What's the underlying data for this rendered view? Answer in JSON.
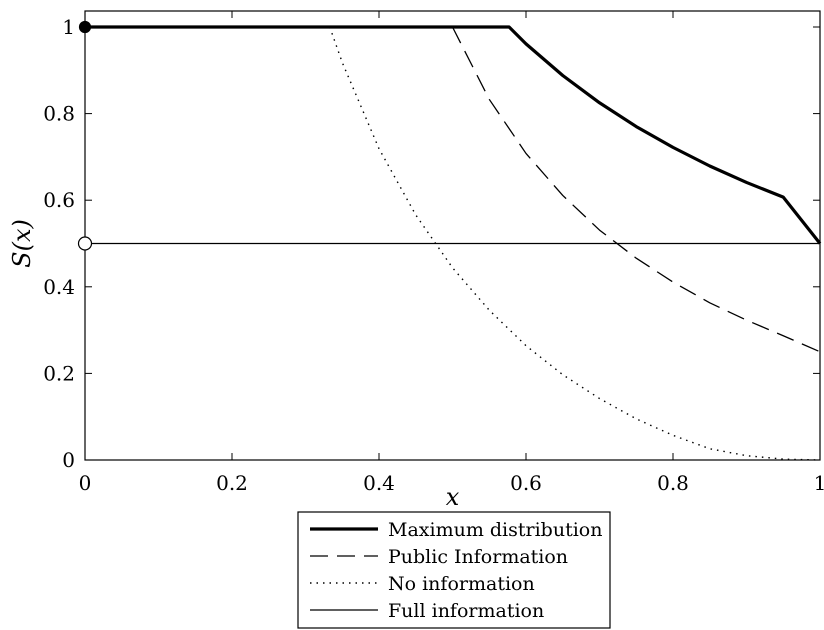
{
  "chart_data": {
    "type": "line",
    "xlabel": "x",
    "ylabel": "S(x)",
    "xlim": [
      0,
      1
    ],
    "ylim": [
      0,
      1
    ],
    "xticks": [
      "0",
      "0.2",
      "0.4",
      "0.6",
      "0.8",
      "1"
    ],
    "yticks": [
      "0",
      "0.2",
      "0.4",
      "0.6",
      "0.8",
      "1"
    ],
    "grid": false,
    "legend_position": "bottom-center",
    "series": [
      {
        "name": "Maximum distribution",
        "style": "solid-thick",
        "x": [
          0,
          0.577,
          0.6,
          0.65,
          0.7,
          0.75,
          0.8,
          0.85,
          0.9,
          0.95,
          1.0
        ],
        "y": [
          1.0,
          1.0,
          0.961,
          0.888,
          0.825,
          0.77,
          0.722,
          0.679,
          0.641,
          0.607,
          0.5
        ]
      },
      {
        "name": "Public Information",
        "style": "dashed",
        "x": [
          0.5,
          0.55,
          0.6,
          0.65,
          0.7,
          0.75,
          0.8,
          0.85,
          0.9,
          0.95,
          1.0
        ],
        "y": [
          1.0,
          0.833,
          0.708,
          0.611,
          0.531,
          0.466,
          0.411,
          0.363,
          0.323,
          0.287,
          0.25
        ]
      },
      {
        "name": "No information",
        "style": "dotted",
        "x": [
          0.333,
          0.35,
          0.4,
          0.45,
          0.5,
          0.55,
          0.6,
          0.65,
          0.7,
          0.75,
          0.8,
          0.85,
          0.9,
          0.95,
          1.0
        ],
        "y": [
          1.0,
          0.918,
          0.719,
          0.566,
          0.444,
          0.346,
          0.264,
          0.197,
          0.142,
          0.095,
          0.057,
          0.026,
          0.01,
          0.002,
          0.0
        ]
      },
      {
        "name": "Full information",
        "style": "solid-thin",
        "x": [
          0,
          1
        ],
        "y": [
          0.5,
          0.5
        ]
      }
    ],
    "markers": [
      {
        "x": 0,
        "y": 1.0,
        "fill": "filled"
      },
      {
        "x": 0,
        "y": 0.5,
        "fill": "open"
      }
    ]
  }
}
